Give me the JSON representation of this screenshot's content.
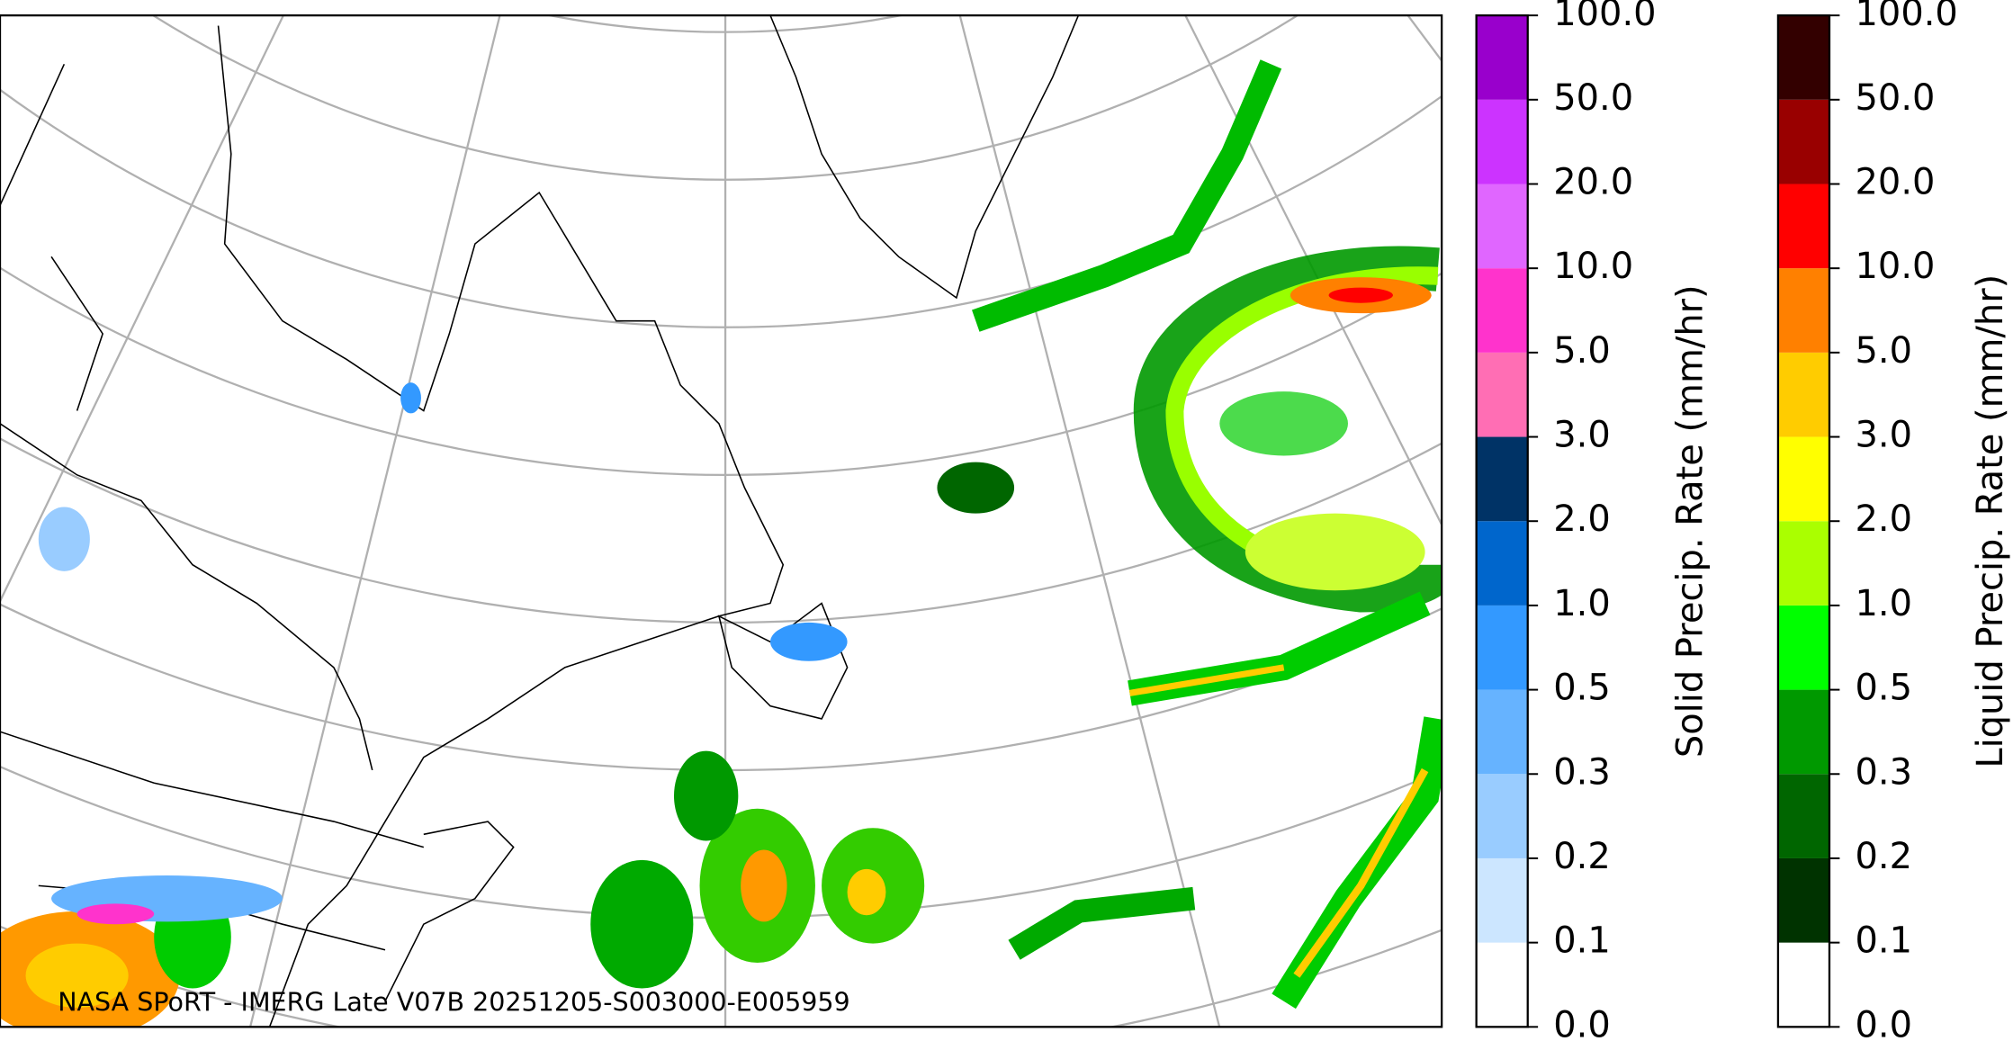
{
  "map": {
    "caption": "NASA SPoRT - IMERG Late V07B 20251205-S003000-E005959"
  },
  "colorbars": [
    {
      "label": "Solid Precip. Rate (mm/hr)",
      "colors": [
        "#ffffff",
        "#cce6ff",
        "#99ccff",
        "#66b3ff",
        "#3399ff",
        "#0066cc",
        "#003366",
        "#ff6eb4",
        "#ff33cc",
        "#e066ff",
        "#cc33ff",
        "#9900cc"
      ],
      "ticks": [
        {
          "value": 0,
          "label": "0.0"
        },
        {
          "value": 0.1,
          "label": "0.1"
        },
        {
          "value": 0.2,
          "label": "0.2"
        },
        {
          "value": 0.3,
          "label": "0.3"
        },
        {
          "value": 0.5,
          "label": "0.5"
        },
        {
          "value": 1,
          "label": "1.0"
        },
        {
          "value": 2,
          "label": "2.0"
        },
        {
          "value": 3,
          "label": "3.0"
        },
        {
          "value": 5,
          "label": "5.0"
        },
        {
          "value": 10,
          "label": "10.0"
        },
        {
          "value": 20,
          "label": "20.0"
        },
        {
          "value": 50,
          "label": "50.0"
        },
        {
          "value": 100,
          "label": "100.0"
        }
      ]
    },
    {
      "label": "Liquid Precip. Rate (mm/hr)",
      "colors": [
        "#ffffff",
        "#003300",
        "#006600",
        "#009900",
        "#00ff00",
        "#aaff00",
        "#ffff00",
        "#ffcc00",
        "#ff8000",
        "#ff0000",
        "#990000",
        "#330000"
      ],
      "ticks": [
        {
          "value": 0,
          "label": "0.0"
        },
        {
          "value": 0.1,
          "label": "0.1"
        },
        {
          "value": 0.2,
          "label": "0.2"
        },
        {
          "value": 0.3,
          "label": "0.3"
        },
        {
          "value": 0.5,
          "label": "0.5"
        },
        {
          "value": 1,
          "label": "1.0"
        },
        {
          "value": 2,
          "label": "2.0"
        },
        {
          "value": 3,
          "label": "3.0"
        },
        {
          "value": 5,
          "label": "5.0"
        },
        {
          "value": 10,
          "label": "10.0"
        },
        {
          "value": 20,
          "label": "20.0"
        },
        {
          "value": 50,
          "label": "50.0"
        },
        {
          "value": 100,
          "label": "100.0"
        }
      ]
    }
  ]
}
